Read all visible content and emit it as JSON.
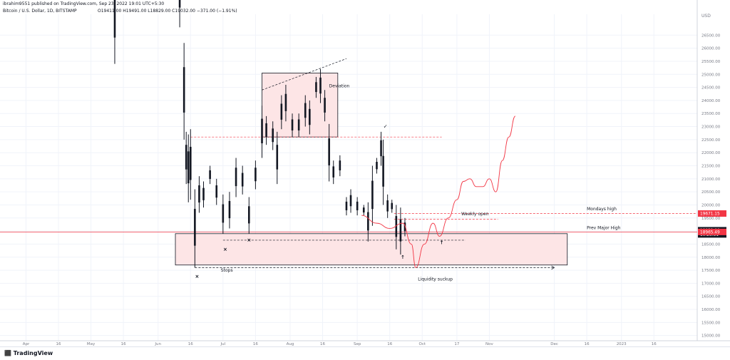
{
  "header": {
    "published": "ibrahim9551 published on TradingView.com, Sep 23, 2022 19:01 UTC+5:30",
    "symbol_line": "Bitcoin / U.S. Dollar, 1D, BITSTAMP",
    "ohlc": "O19411.00  H19491.00  L18829.00  C19032.00  −371.00 (−1.91%)"
  },
  "footer": {
    "brand": "TradingView",
    "logo_icon": "tradingview-logo-icon"
  },
  "colors": {
    "candle": "#131722",
    "zone_fill": "#fde5e6",
    "zone_stroke": "#131722",
    "level_red": "#f23645",
    "projection": "#f23645",
    "grid": "#f0f3fa"
  },
  "chart_data": {
    "type": "candlestick",
    "title": "Bitcoin / U.S. Dollar, 1D, BITSTAMP",
    "y_unit": "USD",
    "ylim": [
      14800,
      27300
    ],
    "y_ticks": [
      15000,
      15500,
      16000,
      16500,
      17000,
      17500,
      18000,
      18500,
      19000,
      19500,
      20000,
      20500,
      21000,
      21500,
      22000,
      22500,
      23000,
      23500,
      24000,
      24500,
      25000,
      25500,
      26000,
      26500
    ],
    "xlim": [
      "2022-03-20",
      "2023-02-05"
    ],
    "x_ticks": [
      {
        "date": "2022-04-01",
        "label": "Apr"
      },
      {
        "date": "2022-04-16",
        "label": "16"
      },
      {
        "date": "2022-05-01",
        "label": "May"
      },
      {
        "date": "2022-05-16",
        "label": "16"
      },
      {
        "date": "2022-06-01",
        "label": "Jun"
      },
      {
        "date": "2022-06-16",
        "label": "16"
      },
      {
        "date": "2022-07-01",
        "label": "Jul"
      },
      {
        "date": "2022-07-16",
        "label": "16"
      },
      {
        "date": "2022-08-01",
        "label": "Aug"
      },
      {
        "date": "2022-08-16",
        "label": "16"
      },
      {
        "date": "2022-09-01",
        "label": "Sep"
      },
      {
        "date": "2022-09-16",
        "label": "16"
      },
      {
        "date": "2022-10-01",
        "label": "Oct"
      },
      {
        "date": "2022-10-17",
        "label": "17"
      },
      {
        "date": "2022-11-01",
        "label": "Nov"
      },
      {
        "date": "2022-12-01",
        "label": "Dec"
      },
      {
        "date": "2022-12-16",
        "label": "16"
      },
      {
        "date": "2023-01-01",
        "label": "2023"
      },
      {
        "date": "2023-01-16",
        "label": "16"
      }
    ],
    "candles": [
      {
        "d": "2022-05-12",
        "h": 29000,
        "l": 25400
      },
      {
        "d": "2022-06-11",
        "h": 29500,
        "l": 26800
      },
      {
        "d": "2022-06-13",
        "h": 26200,
        "l": 22500
      },
      {
        "d": "2022-06-14",
        "h": 22800,
        "l": 20800
      },
      {
        "d": "2022-06-15",
        "h": 22700,
        "l": 20100
      },
      {
        "d": "2022-06-16",
        "h": 22900,
        "l": 20200
      },
      {
        "d": "2022-06-18",
        "h": 20600,
        "l": 17600
      },
      {
        "d": "2022-06-20",
        "h": 21100,
        "l": 19700
      },
      {
        "d": "2022-06-22",
        "h": 20900,
        "l": 19900
      },
      {
        "d": "2022-06-25",
        "h": 21500,
        "l": 20800
      },
      {
        "d": "2022-06-28",
        "h": 21000,
        "l": 20000
      },
      {
        "d": "2022-07-01",
        "h": 20400,
        "l": 18900
      },
      {
        "d": "2022-07-04",
        "h": 20500,
        "l": 19100
      },
      {
        "d": "2022-07-07",
        "h": 21800,
        "l": 20300
      },
      {
        "d": "2022-07-10",
        "h": 21500,
        "l": 20400
      },
      {
        "d": "2022-07-13",
        "h": 20300,
        "l": 18900
      },
      {
        "d": "2022-07-16",
        "h": 21700,
        "l": 20600
      },
      {
        "d": "2022-07-19",
        "h": 23800,
        "l": 21800
      },
      {
        "d": "2022-07-21",
        "h": 23400,
        "l": 22300
      },
      {
        "d": "2022-07-24",
        "h": 23200,
        "l": 22100
      },
      {
        "d": "2022-07-26",
        "h": 22800,
        "l": 20800
      },
      {
        "d": "2022-07-28",
        "h": 24200,
        "l": 22900
      },
      {
        "d": "2022-07-30",
        "h": 24600,
        "l": 23200
      },
      {
        "d": "2022-08-02",
        "h": 23500,
        "l": 22600
      },
      {
        "d": "2022-08-05",
        "h": 23500,
        "l": 22600
      },
      {
        "d": "2022-08-08",
        "h": 24200,
        "l": 23000
      },
      {
        "d": "2022-08-10",
        "h": 24000,
        "l": 22700
      },
      {
        "d": "2022-08-13",
        "h": 24900,
        "l": 24100
      },
      {
        "d": "2022-08-15",
        "h": 25200,
        "l": 23900
      },
      {
        "d": "2022-08-17",
        "h": 24400,
        "l": 23200
      },
      {
        "d": "2022-08-19",
        "h": 23100,
        "l": 20900
      },
      {
        "d": "2022-08-21",
        "h": 21700,
        "l": 20800
      },
      {
        "d": "2022-08-24",
        "h": 21900,
        "l": 21100
      },
      {
        "d": "2022-08-27",
        "h": 20300,
        "l": 19600
      },
      {
        "d": "2022-08-29",
        "h": 20600,
        "l": 19700
      },
      {
        "d": "2022-09-01",
        "h": 20300,
        "l": 19600
      },
      {
        "d": "2022-09-04",
        "h": 20000,
        "l": 19600
      },
      {
        "d": "2022-09-06",
        "h": 20100,
        "l": 18600
      },
      {
        "d": "2022-09-08",
        "h": 21500,
        "l": 19200
      },
      {
        "d": "2022-09-10",
        "h": 21800,
        "l": 21200
      },
      {
        "d": "2022-09-12",
        "h": 22800,
        "l": 21500
      },
      {
        "d": "2022-09-13",
        "h": 22500,
        "l": 20000
      },
      {
        "d": "2022-09-15",
        "h": 20400,
        "l": 19500
      },
      {
        "d": "2022-09-17",
        "h": 20200,
        "l": 19700
      },
      {
        "d": "2022-09-19",
        "h": 20000,
        "l": 18300
      },
      {
        "d": "2022-09-21",
        "h": 19900,
        "l": 18100
      },
      {
        "d": "2022-09-23",
        "h": 19500,
        "l": 18800
      }
    ],
    "projection_path": [
      {
        "d": "2022-09-03",
        "v": 19600
      },
      {
        "d": "2022-09-10",
        "v": 19300
      },
      {
        "d": "2022-09-16",
        "v": 19100
      },
      {
        "d": "2022-09-22",
        "v": 19300
      },
      {
        "d": "2022-09-26",
        "v": 18500
      },
      {
        "d": "2022-09-28",
        "v": 17600
      },
      {
        "d": "2022-10-02",
        "v": 18500
      },
      {
        "d": "2022-10-06",
        "v": 19300
      },
      {
        "d": "2022-10-09",
        "v": 18800
      },
      {
        "d": "2022-10-13",
        "v": 19500
      },
      {
        "d": "2022-10-17",
        "v": 20200
      },
      {
        "d": "2022-10-20",
        "v": 20900
      },
      {
        "d": "2022-10-23",
        "v": 21000
      },
      {
        "d": "2022-10-26",
        "v": 20700
      },
      {
        "d": "2022-10-29",
        "v": 20700
      },
      {
        "d": "2022-11-01",
        "v": 21000
      },
      {
        "d": "2022-11-04",
        "v": 20500
      },
      {
        "d": "2022-11-07",
        "v": 21700
      },
      {
        "d": "2022-11-10",
        "v": 22600
      },
      {
        "d": "2022-11-13",
        "v": 23400
      }
    ],
    "zones": [
      {
        "name": "deviation-zone",
        "x0": "2022-07-19",
        "x1": "2022-08-23",
        "y0": 22600,
        "y1": 25050
      },
      {
        "name": "demand-zone",
        "x0": "2022-06-09",
        "x1": "2022-12-07",
        "y0": 17700,
        "y1": 18900
      }
    ],
    "levels": [
      {
        "name": "mondays-high-level",
        "from": "2022-09-18",
        "to": "2023-02-05",
        "value": 19671.15,
        "style": "dashed-red",
        "label": "Mondays high"
      },
      {
        "name": "weekly-open-level",
        "from": "2022-09-18",
        "to": "2022-11-05",
        "value": 19450,
        "style": "dashed-red",
        "label": "Weekly open"
      },
      {
        "name": "prev-major-high-level",
        "from": "2022-03-20",
        "to": "2023-02-05",
        "value": 18965.49,
        "style": "solid-red",
        "label": "Prev Major High"
      },
      {
        "name": "deviation-reference-level",
        "from": "2022-06-16",
        "to": "2022-10-10",
        "value": 22600,
        "style": "dashed-red",
        "label": ""
      },
      {
        "name": "range-low-level",
        "from": "2022-07-01",
        "to": "2022-10-21",
        "value": 18650,
        "style": "dashed-dark",
        "label": ""
      },
      {
        "name": "stops-level",
        "from": "2022-06-18",
        "to": "2022-12-01",
        "value": 17600,
        "style": "dashed-dark",
        "label": ""
      }
    ],
    "annotations": [
      {
        "name": "deviation-label",
        "text": "Deviation",
        "d": "2022-08-19",
        "v": 24500
      },
      {
        "name": "stops-label",
        "text": "Stops",
        "d": "2022-06-30",
        "v": 17450
      },
      {
        "name": "liquidity-suckup-label",
        "text": "Liquidity suckup",
        "d": "2022-09-29",
        "v": 17100
      },
      {
        "name": "mondays-high-label",
        "text": "Mondays high",
        "d": "2022-12-16",
        "v": 19800
      },
      {
        "name": "weekly-open-label",
        "text": "Weekly open",
        "d": "2022-10-19",
        "v": 19600
      },
      {
        "name": "prev-major-high-label",
        "text": "Prev Major High",
        "d": "2022-12-16",
        "v": 19070
      }
    ],
    "markers": [
      {
        "name": "x-mark",
        "symbol": "×",
        "d": "2022-06-19",
        "v": 17250
      },
      {
        "name": "x-mark",
        "symbol": "×",
        "d": "2022-07-02",
        "v": 18300
      },
      {
        "name": "x-mark",
        "symbol": "×",
        "d": "2022-07-13",
        "v": 18650
      },
      {
        "name": "check-mark",
        "symbol": "✓",
        "d": "2022-09-14",
        "v": 23000
      },
      {
        "name": "up-arrow-mark",
        "symbol": "↑",
        "d": "2022-09-22",
        "v": 18000
      },
      {
        "name": "up-arrow-mark",
        "symbol": "↑",
        "d": "2022-10-10",
        "v": 18550
      }
    ],
    "price_labels": [
      {
        "name": "mondays-high-price-tag",
        "value": 19671.15,
        "text": "19671.15",
        "bg": "#f23645",
        "fg": "#ffffff"
      },
      {
        "name": "last-price-tag",
        "value": 19032.0,
        "text": "19032.00",
        "bg": "#131722",
        "fg": "#ffffff"
      },
      {
        "name": "countdown-tag",
        "value": 18870,
        "text": "10:28:31",
        "bg": "#131722",
        "fg": "#ffffff"
      },
      {
        "name": "prev-major-high-price-tag",
        "value": 18965.49,
        "text": "18965.49",
        "bg": "#f23645",
        "fg": "#ffffff"
      }
    ]
  }
}
